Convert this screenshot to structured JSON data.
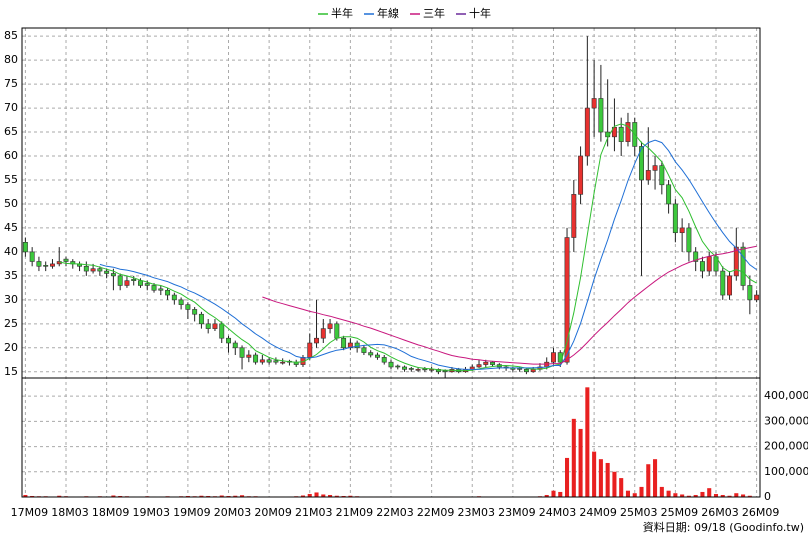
{
  "chart_data": {
    "type": "candlestick",
    "categories": [
      "17M09",
      null,
      null,
      null,
      null,
      null,
      "18M03",
      null,
      null,
      null,
      null,
      null,
      "18M09",
      null,
      null,
      null,
      null,
      null,
      "19M03",
      null,
      null,
      null,
      null,
      null,
      "19M09",
      null,
      null,
      null,
      null,
      null,
      "20M03",
      null,
      null,
      null,
      null,
      null,
      "20M09",
      null,
      null,
      null,
      null,
      null,
      "21M03",
      null,
      null,
      null,
      null,
      null,
      "21M09",
      null,
      null,
      null,
      null,
      null,
      "22M03",
      null,
      null,
      null,
      null,
      null,
      "22M09",
      null,
      null,
      null,
      null,
      null,
      "23M03",
      null,
      null,
      null,
      null,
      null,
      "23M09",
      null,
      null,
      null,
      null,
      null,
      "24M03",
      null,
      null,
      null,
      null,
      null,
      "24M09",
      null,
      null,
      null,
      null,
      null,
      "25M03",
      null,
      null,
      null,
      null,
      null,
      "25M09",
      null,
      null,
      null,
      null,
      null,
      "26M03",
      null,
      null,
      null,
      null,
      null,
      "26M09"
    ],
    "open": [
      42,
      40,
      38,
      37.2,
      37,
      37.5,
      38.5,
      38,
      37.5,
      37,
      36,
      36.5,
      36,
      35.5,
      35,
      33,
      34.3,
      34,
      33.4,
      33,
      32.3,
      32,
      31,
      30,
      29,
      28,
      27,
      25,
      24,
      25,
      22,
      21,
      20,
      18,
      18.5,
      17,
      17.5,
      17.3,
      16.8,
      17.2,
      17,
      16.5,
      18,
      21,
      22,
      24,
      25,
      22,
      20,
      21,
      20,
      19,
      18.5,
      18,
      17,
      16.2,
      16,
      15.7,
      15.3,
      15.6,
      15.4,
      15.5,
      15.2,
      15,
      15.5,
      15,
      15.5,
      16,
      16.5,
      17,
      16.5,
      16,
      15.8,
      15.7,
      15.5,
      15,
      15.5,
      16,
      17,
      19,
      17,
      43,
      52,
      60,
      70,
      72,
      65,
      64,
      66,
      63,
      67,
      62,
      55,
      57,
      58,
      54,
      50,
      44,
      45,
      40,
      38,
      36,
      39,
      36,
      31,
      35,
      41,
      33,
      30
    ],
    "high": [
      43,
      41,
      39,
      38,
      38.5,
      41,
      39,
      38.5,
      38,
      38,
      37.5,
      37,
      36.5,
      36.5,
      35.5,
      35,
      35,
      34.5,
      34,
      33.5,
      33,
      32.5,
      31.5,
      30.5,
      29.5,
      28.5,
      27.5,
      26,
      26,
      25.5,
      22.5,
      21.5,
      20.5,
      19.5,
      19,
      18.5,
      18,
      18,
      17.8,
      17.5,
      17.5,
      18.5,
      23,
      30,
      26,
      26,
      25.5,
      22.5,
      22,
      21.5,
      20.5,
      19.5,
      19,
      18.5,
      17.5,
      16.5,
      16.3,
      16,
      16,
      16,
      16,
      15.7,
      15.5,
      16,
      15.8,
      16,
      16.5,
      17.5,
      17.5,
      17.2,
      16.8,
      16.3,
      16,
      16,
      15.8,
      16,
      16.8,
      18,
      20,
      19.5,
      45,
      55,
      62,
      85,
      80,
      79,
      76,
      72,
      68,
      69,
      68,
      63,
      66,
      60,
      59,
      55,
      51,
      47,
      46,
      41,
      39,
      40,
      40,
      37,
      36,
      45,
      42,
      35,
      32
    ],
    "low": [
      39,
      37,
      36,
      36,
      36.5,
      37,
      37,
      36.5,
      36,
      35,
      35.5,
      35,
      34.5,
      32,
      32,
      32.5,
      33,
      32.5,
      32,
      31.5,
      31,
      30,
      29,
      28,
      26,
      25.5,
      24,
      23,
      23.5,
      21,
      19,
      18.5,
      15.5,
      17,
      16.5,
      16.5,
      16.5,
      16.5,
      16.5,
      16.3,
      16,
      16,
      17.5,
      20,
      21,
      23,
      21.5,
      19.5,
      19.5,
      19,
      18.5,
      18,
      17.5,
      16.5,
      15.5,
      15.5,
      15,
      15,
      15,
      15,
      15,
      14.5,
      13.8,
      14.8,
      14.7,
      14.8,
      15.2,
      15.8,
      16,
      16,
      15.5,
      15.2,
      15,
      15,
      14.5,
      14.8,
      15.2,
      15.5,
      16.5,
      16,
      16.5,
      40,
      50,
      58,
      64,
      63,
      62,
      61,
      60,
      62,
      60,
      35,
      54,
      53,
      52,
      48,
      42,
      40,
      38,
      36,
      34.5,
      35,
      35,
      30,
      30,
      34,
      32,
      27,
      29.5
    ],
    "close": [
      40,
      38,
      37,
      37,
      37.5,
      38,
      38,
      37.5,
      37,
      36,
      36.5,
      36,
      35.5,
      35,
      33,
      34,
      34,
      33,
      33,
      32,
      32,
      31,
      30,
      29,
      28,
      27,
      25,
      24,
      25,
      22,
      21,
      20,
      18,
      18.5,
      17,
      17.5,
      17,
      17,
      17,
      17,
      16.5,
      18,
      21,
      22,
      24,
      25,
      22,
      20,
      21,
      20,
      19,
      18.5,
      18,
      17,
      16,
      16,
      15.5,
      15.5,
      15.5,
      15.5,
      15.5,
      15,
      15,
      15.5,
      15,
      15.5,
      16,
      16.5,
      17,
      16.5,
      16,
      15.8,
      15.5,
      15.5,
      15,
      15.5,
      16,
      17,
      19,
      17,
      43,
      52,
      60,
      70,
      72,
      65,
      64,
      66,
      63,
      67,
      62,
      55,
      57,
      58,
      54,
      50,
      44,
      45,
      40,
      38,
      36,
      39,
      36,
      31,
      35,
      41,
      33,
      30,
      31
    ],
    "up_color": "#e8312f",
    "down_color": "#3cc83c",
    "volume": {
      "color": "#e82020",
      "values": [
        8000,
        4000,
        3000,
        3000,
        2000,
        5000,
        3000,
        2000,
        2000,
        3000,
        2000,
        3000,
        2000,
        6000,
        4000,
        3000,
        2000,
        2000,
        3000,
        2000,
        2000,
        3000,
        2000,
        3000,
        4000,
        3000,
        5000,
        4000,
        3000,
        6000,
        4000,
        5000,
        7000,
        3000,
        3000,
        2000,
        2000,
        2000,
        2000,
        2000,
        3000,
        6000,
        12000,
        18000,
        10000,
        8000,
        5000,
        4000,
        5000,
        3000,
        2000,
        2000,
        2000,
        2000,
        2000,
        2000,
        2000,
        1000,
        1000,
        1000,
        1000,
        2000,
        2000,
        2000,
        1000,
        1000,
        2000,
        3000,
        2000,
        2000,
        1000,
        1000,
        1000,
        1000,
        2000,
        2000,
        3000,
        8000,
        25000,
        20000,
        155000,
        310000,
        270000,
        435000,
        180000,
        150000,
        135000,
        100000,
        75000,
        25000,
        15000,
        40000,
        130000,
        150000,
        40000,
        25000,
        15000,
        10000,
        5000,
        8000,
        20000,
        35000,
        12000,
        8000,
        5000,
        15000,
        10000,
        5000,
        2000
      ]
    },
    "series": [
      {
        "name": "半年",
        "color": "#2fbf2f",
        "values": [
          null,
          null,
          null,
          null,
          null,
          37.9,
          37.6,
          37.5,
          37.5,
          37.3,
          37.2,
          36.8,
          36.4,
          36,
          35.3,
          35,
          34.6,
          34.1,
          33.7,
          33.2,
          33,
          32.5,
          31.8,
          31.2,
          30.3,
          29.5,
          28.3,
          27.2,
          26.3,
          25.2,
          24,
          22.8,
          21.7,
          20.8,
          19.4,
          18.7,
          18,
          17.5,
          17.3,
          17.1,
          17,
          17.1,
          17.8,
          18.6,
          19.8,
          21.1,
          22,
          22.3,
          22.3,
          22,
          21.2,
          20.1,
          19.4,
          18.9,
          18.1,
          17.4,
          16.8,
          16.3,
          15.9,
          15.7,
          15.6,
          15.4,
          15.3,
          15.3,
          15.25,
          15.25,
          15.3,
          15.6,
          15.9,
          16.1,
          16.25,
          16.3,
          16.2,
          16.05,
          15.7,
          15.55,
          15.55,
          15.75,
          16.3,
          16.6,
          21.25,
          27.3,
          34.7,
          43.5,
          52.3,
          60.3,
          63.8,
          66.2,
          66.7,
          66.2,
          64.5,
          62.8,
          61.7,
          60.3,
          58.8,
          56,
          53,
          51.3,
          48.5,
          45.2,
          42.2,
          40.3,
          39,
          36.7,
          35.8,
          36.3,
          35.8,
          34.3,
          33.5
        ]
      },
      {
        "name": "年線",
        "color": "#1f6fd6",
        "values": [
          null,
          null,
          null,
          null,
          null,
          null,
          null,
          null,
          null,
          null,
          null,
          37.4,
          37,
          36.8,
          36.4,
          36.2,
          35.9,
          35.5,
          35.1,
          34.6,
          34.2,
          33.8,
          33.2,
          32.7,
          32,
          31.4,
          30.7,
          29.9,
          29.1,
          28.2,
          27.2,
          26.2,
          25,
          24,
          22.9,
          22,
          21,
          20.2,
          19.5,
          19,
          18.2,
          17.9,
          17.9,
          18.1,
          18.6,
          19.1,
          19.5,
          19.7,
          20.1,
          20.3,
          20.5,
          20.6,
          20.7,
          20.6,
          20.2,
          19.7,
          19,
          18.2,
          17.7,
          17.3,
          16.9,
          16.4,
          16.1,
          15.8,
          15.6,
          15.5,
          15.5,
          15.5,
          15.6,
          15.7,
          15.8,
          15.8,
          15.8,
          15.8,
          15.8,
          15.8,
          15.9,
          16,
          16.3,
          16.3,
          18.5,
          21.4,
          25.1,
          29.6,
          34.3,
          38.5,
          42.5,
          46.8,
          50.7,
          54.9,
          58.4,
          61.6,
          62.8,
          63.3,
          62.8,
          61.1,
          58.8,
          57.1,
          55.1,
          52.8,
          50.5,
          48.2,
          46,
          44,
          42.2,
          40.8,
          39,
          37.3,
          36.3
        ]
      },
      {
        "name": "三年",
        "color": "#c8177e",
        "values": [
          null,
          null,
          null,
          null,
          null,
          null,
          null,
          null,
          null,
          null,
          null,
          null,
          null,
          null,
          null,
          null,
          null,
          null,
          null,
          null,
          null,
          null,
          null,
          null,
          null,
          null,
          null,
          null,
          null,
          null,
          null,
          null,
          null,
          null,
          null,
          30.6,
          30.1,
          29.6,
          29.2,
          28.8,
          28.4,
          28,
          27.6,
          27.3,
          26.9,
          26.6,
          26.2,
          25.8,
          25.4,
          25,
          24.5,
          24.1,
          23.6,
          23.1,
          22.6,
          22.1,
          21.6,
          21.1,
          20.6,
          20.2,
          19.7,
          19.3,
          18.8,
          18.4,
          18.1,
          17.9,
          17.6,
          17.5,
          17.3,
          17.2,
          17.1,
          17,
          16.9,
          16.8,
          16.7,
          16.6,
          16.6,
          16.6,
          16.7,
          16.7,
          17.5,
          18.5,
          19.7,
          21.1,
          22.6,
          24,
          25.3,
          26.7,
          28,
          29.4,
          30.6,
          31.7,
          32.8,
          33.9,
          34.9,
          35.8,
          36.5,
          37.2,
          37.8,
          38.3,
          38.7,
          39.1,
          39.4,
          39.6,
          39.9,
          40.3,
          40.6,
          40.9,
          41.2
        ]
      },
      {
        "name": "十年",
        "color": "#6a2a9a",
        "values": [
          null,
          null,
          null,
          null,
          null,
          null,
          null,
          null,
          null,
          null,
          null,
          null,
          null,
          null,
          null,
          null,
          null,
          null,
          null,
          null,
          null,
          null,
          null,
          null,
          null,
          null,
          null,
          null,
          null,
          null,
          null,
          null,
          null,
          null,
          null,
          null,
          null,
          null,
          null,
          null,
          null,
          null,
          null,
          null,
          null,
          null,
          null,
          null,
          null,
          null,
          null,
          null,
          null,
          null,
          null,
          null,
          null,
          null,
          null,
          null,
          null,
          null,
          null,
          null,
          null,
          null,
          null,
          null,
          null,
          null,
          null,
          null,
          null,
          null,
          null,
          null,
          null,
          null,
          null,
          null,
          null,
          null,
          null,
          null,
          null,
          null,
          null,
          null,
          null,
          null,
          null,
          null,
          null,
          null,
          null,
          null,
          null,
          null,
          null,
          null,
          null,
          null,
          null,
          null,
          null,
          null,
          null,
          null,
          null
        ]
      }
    ],
    "ylim": [
      13.7,
      86.7
    ],
    "yticks": [
      15,
      20,
      25,
      30,
      35,
      40,
      45,
      50,
      55,
      60,
      65,
      70,
      75,
      80,
      85
    ],
    "y2lim": [
      0,
      472000
    ],
    "y2ticks": [
      0,
      {
        "value": 100000,
        "label": "100,000"
      },
      {
        "value": 200000,
        "label": "200,000"
      },
      {
        "value": 300000,
        "label": "300,000"
      },
      {
        "value": 400000,
        "label": "400,000"
      }
    ],
    "grid": true,
    "legend": "top",
    "footer": "資料日期: 09/18 (Goodinfo.tw)"
  }
}
